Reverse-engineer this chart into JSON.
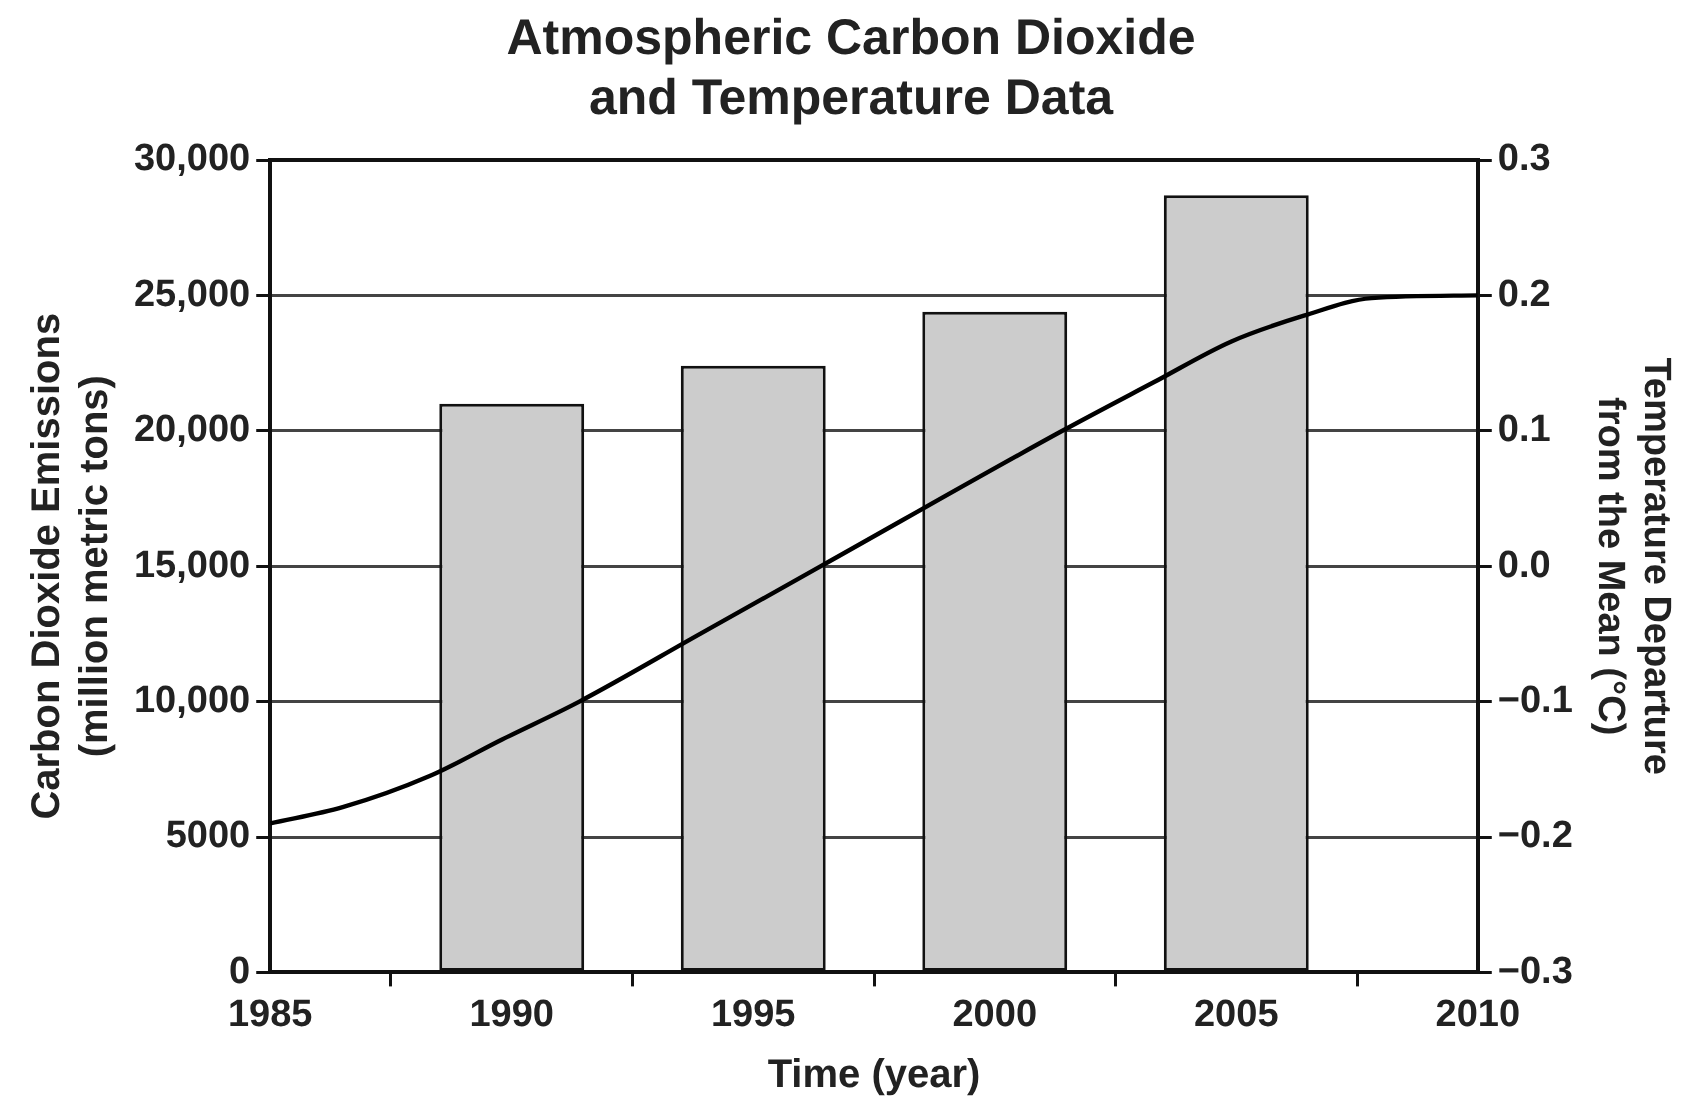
{
  "chart_data": {
    "type": "bar",
    "title": "Atmospheric Carbon Dioxide and Temperature Data",
    "xlabel": "Time (year)",
    "ylabel": "Carbon Dioxide Emissions (million metric tons)",
    "y2label": "Temperature Departure from the Mean (°C)",
    "xlim": [
      1985,
      2010
    ],
    "xticks": [
      1985,
      1990,
      1995,
      2000,
      2005,
      2010
    ],
    "ylim": [
      0,
      30000
    ],
    "yticks": [
      0,
      5000,
      {
        "value": 10000,
        "label": "10,000"
      },
      {
        "value": 15000,
        "label": "15,000"
      },
      {
        "value": 20000,
        "label": "20,000"
      },
      {
        "value": 25000,
        "label": "25,000"
      },
      {
        "value": 30000,
        "label": "30,000"
      }
    ],
    "y2lim": [
      -0.3,
      0.3
    ],
    "y2ticks": [
      {
        "value": -0.3,
        "label": "−0.3"
      },
      {
        "value": -0.2,
        "label": "−0.2"
      },
      {
        "value": -0.1,
        "label": "−0.1"
      },
      {
        "value": 0,
        "label": "0.0"
      },
      0.1,
      0.2,
      0.3
    ],
    "grid": "y",
    "legend": false,
    "marker": "none",
    "line_style": "solid",
    "series": [
      {
        "color": "#cccccc",
        "x": [
          1990,
          1995,
          2000,
          2005
        ],
        "values": [
          21000,
          22400,
          24400,
          28700
        ]
      },
      {
        "type": "line",
        "axis": "y2",
        "color": "#000000",
        "x": [
          1985,
          1986.5,
          1988.3,
          1989.8,
          1991.4,
          1993.9,
          1996.4,
          2001.4,
          2003.3,
          2004.9,
          2006.4,
          2007.8,
          2010
        ],
        "values": [
          -0.19,
          -0.178,
          -0.155,
          -0.128,
          -0.1,
          -0.05,
          0,
          0.1,
          0.136,
          0.166,
          0.185,
          0.198,
          0.2
        ]
      }
    ]
  }
}
